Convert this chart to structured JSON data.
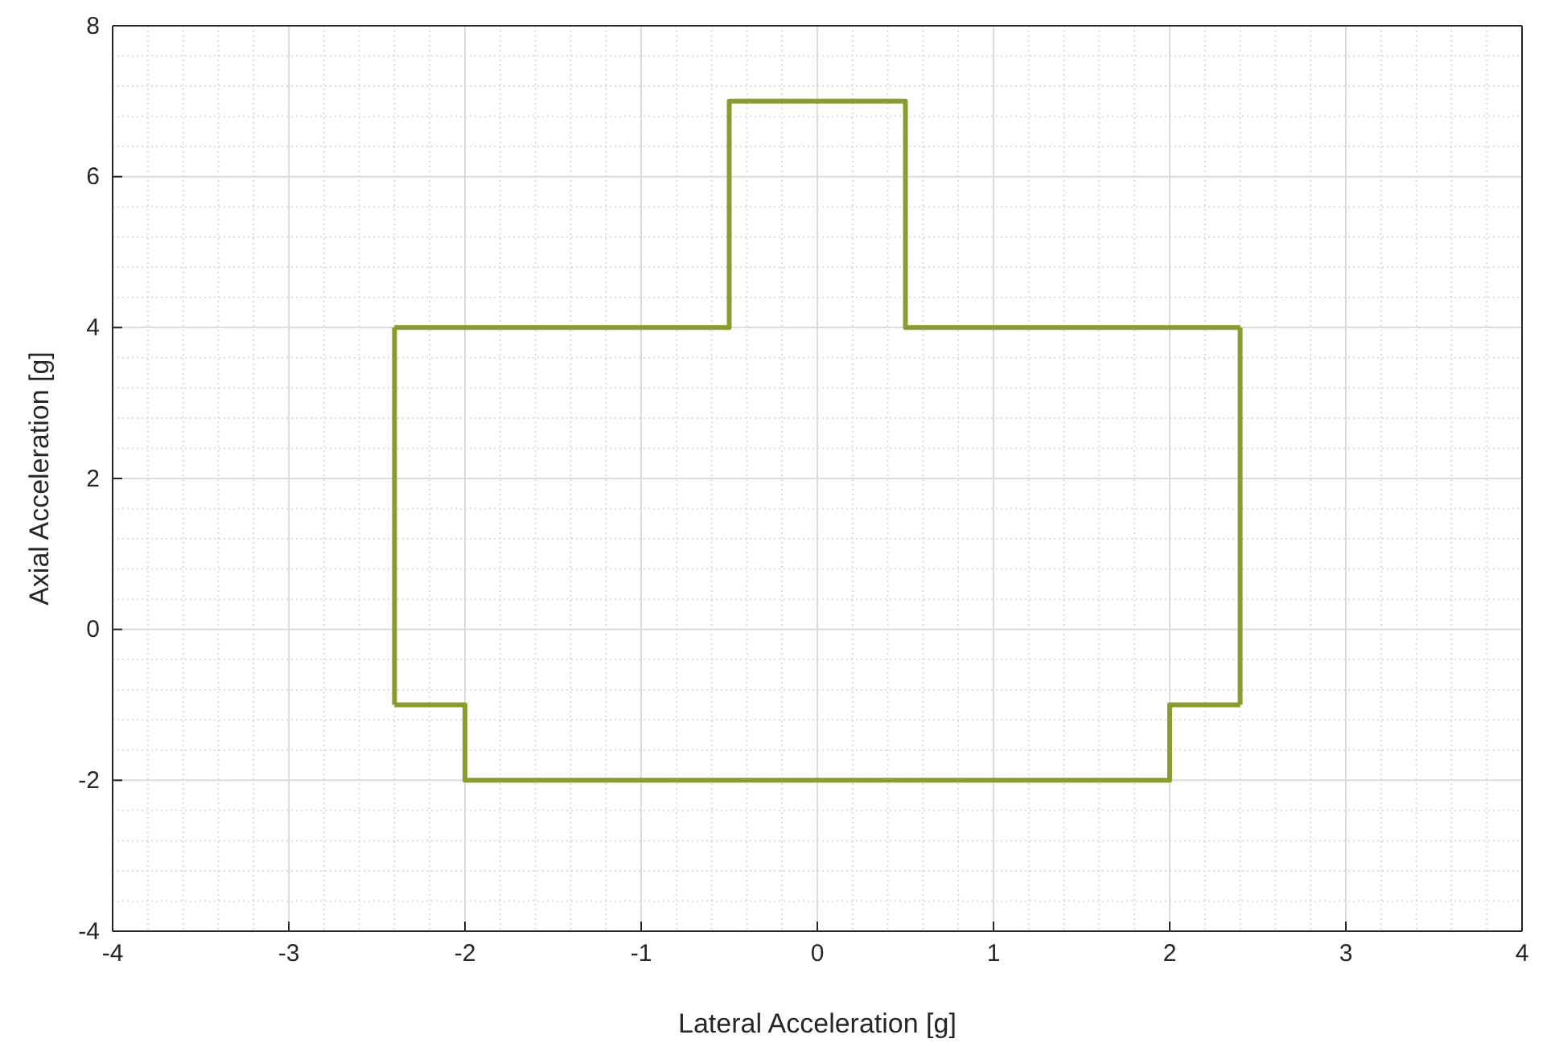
{
  "chart_data": {
    "type": "line",
    "xlabel": "Lateral Acceleration [g]",
    "ylabel": "Axial Acceleration [g]",
    "series": [
      {
        "type": "step",
        "color": "#8c9a2e",
        "x": [
          -2.4,
          -0.5,
          0.5,
          2.4
        ],
        "values": [
          4,
          7,
          4,
          4
        ]
      },
      {
        "type": "step",
        "color": "#8c9a2e",
        "x": [
          -2.4,
          -2,
          2,
          2.4
        ],
        "values": [
          -1,
          -2,
          -1,
          -1
        ]
      },
      {
        "color": "#8c9a2e",
        "x": [
          -2.4,
          -2.4
        ],
        "values": [
          -1,
          4
        ]
      },
      {
        "color": "#8c9a2e",
        "x": [
          2.4,
          2.4
        ],
        "values": [
          -1,
          4
        ]
      }
    ],
    "xlim": [
      -4,
      4
    ],
    "xticks": [
      -4,
      -3,
      -2,
      -1,
      0,
      1,
      2,
      3,
      4
    ],
    "ylim": [
      -4,
      8
    ],
    "yticks": [
      -4,
      -2,
      0,
      2,
      4,
      6,
      8
    ],
    "grid": true,
    "marker": "none",
    "line_style": "solid"
  }
}
